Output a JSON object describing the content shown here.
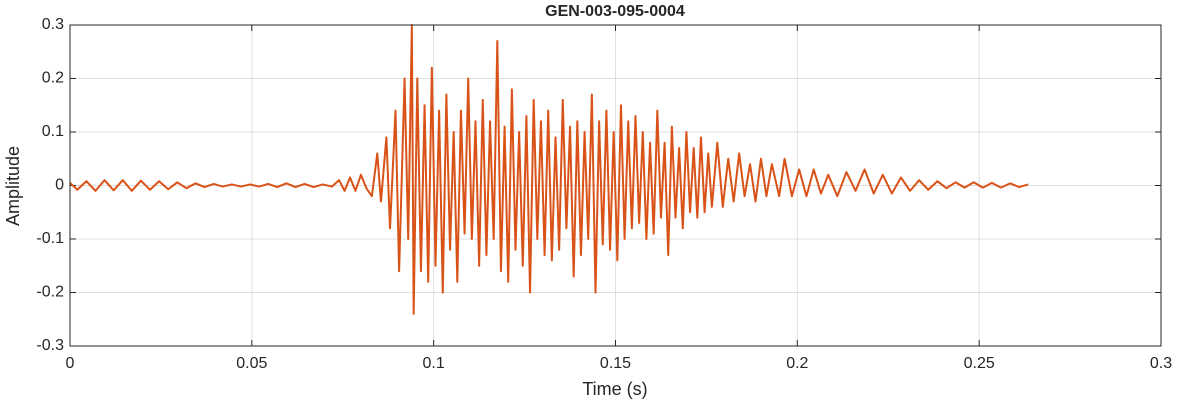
{
  "chart_data": {
    "type": "line",
    "title": "GEN-003-095-0004",
    "x_label": "Time (s)",
    "y_label": "Amplitude",
    "xlim": [
      0,
      0.3
    ],
    "ylim": [
      -0.3,
      0.3
    ],
    "xticks": [
      0,
      0.05,
      0.1,
      0.15,
      0.2,
      0.25,
      0.3
    ],
    "yticks": [
      -0.3,
      -0.2,
      -0.1,
      0,
      0.1,
      0.2,
      0.3
    ],
    "grid": true,
    "color": "#d95319",
    "x": [
      0,
      0.002,
      0.0045,
      0.007,
      0.0095,
      0.012,
      0.0145,
      0.017,
      0.0195,
      0.022,
      0.0245,
      0.027,
      0.0295,
      0.032,
      0.0345,
      0.037,
      0.0395,
      0.042,
      0.0445,
      0.047,
      0.0495,
      0.052,
      0.0545,
      0.057,
      0.0595,
      0.062,
      0.0645,
      0.067,
      0.0695,
      0.072,
      0.074,
      0.0755,
      0.077,
      0.0785,
      0.08,
      0.0815,
      0.083,
      0.0845,
      0.0855,
      0.087,
      0.088,
      0.0895,
      0.0905,
      0.092,
      0.093,
      0.094,
      0.0945,
      0.0955,
      0.0965,
      0.0975,
      0.0985,
      0.0995,
      0.1005,
      0.1015,
      0.1025,
      0.1035,
      0.1045,
      0.1055,
      0.1065,
      0.1075,
      0.1085,
      0.1095,
      0.1105,
      0.1115,
      0.1125,
      0.1135,
      0.1145,
      0.1155,
      0.1165,
      0.1175,
      0.1185,
      0.1195,
      0.1205,
      0.1215,
      0.1225,
      0.1235,
      0.1245,
      0.1255,
      0.1265,
      0.1275,
      0.1285,
      0.1295,
      0.1305,
      0.1315,
      0.1325,
      0.1335,
      0.1345,
      0.1355,
      0.1365,
      0.1375,
      0.1385,
      0.1395,
      0.1405,
      0.1415,
      0.1425,
      0.1435,
      0.1445,
      0.1455,
      0.1465,
      0.1475,
      0.1485,
      0.1495,
      0.1505,
      0.1515,
      0.1525,
      0.1535,
      0.1545,
      0.1555,
      0.1565,
      0.1575,
      0.1585,
      0.1595,
      0.1605,
      0.1615,
      0.1625,
      0.1635,
      0.1645,
      0.1655,
      0.1665,
      0.1675,
      0.1685,
      0.1695,
      0.1705,
      0.1715,
      0.1725,
      0.1735,
      0.1745,
      0.1755,
      0.1765,
      0.178,
      0.1795,
      0.181,
      0.1825,
      0.184,
      0.1855,
      0.187,
      0.1885,
      0.19,
      0.1915,
      0.193,
      0.195,
      0.1965,
      0.1985,
      0.2005,
      0.2025,
      0.2045,
      0.2065,
      0.2085,
      0.211,
      0.2135,
      0.216,
      0.2185,
      0.221,
      0.2235,
      0.226,
      0.2285,
      0.231,
      0.2335,
      0.236,
      0.2385,
      0.241,
      0.2435,
      0.246,
      0.2485,
      0.251,
      0.2535,
      0.256,
      0.2585,
      0.261,
      0.2635
    ],
    "series": [
      {
        "color": "#d95319",
        "values": [
          0.005,
          -0.008,
          0.008,
          -0.01,
          0.01,
          -0.009,
          0.01,
          -0.01,
          0.009,
          -0.008,
          0.008,
          -0.007,
          0.006,
          -0.005,
          0.004,
          -0.003,
          0.003,
          -0.002,
          0.002,
          -0.002,
          0.002,
          -0.002,
          0.003,
          -0.003,
          0.004,
          -0.003,
          0.003,
          -0.003,
          0.002,
          -0.002,
          0.01,
          -0.01,
          0.015,
          -0.01,
          0.02,
          -0.005,
          -0.02,
          0.06,
          -0.03,
          0.09,
          -0.08,
          0.14,
          -0.16,
          0.2,
          -0.1,
          0.3,
          -0.24,
          0.2,
          -0.16,
          0.15,
          -0.18,
          0.22,
          -0.15,
          0.14,
          -0.2,
          0.17,
          -0.12,
          0.1,
          -0.18,
          0.14,
          -0.09,
          0.2,
          -0.1,
          0.12,
          -0.15,
          0.16,
          -0.13,
          0.12,
          -0.1,
          0.27,
          -0.16,
          0.11,
          -0.18,
          0.18,
          -0.12,
          0.1,
          -0.15,
          0.13,
          -0.2,
          0.16,
          -0.1,
          0.12,
          -0.13,
          0.14,
          -0.14,
          0.09,
          -0.12,
          0.16,
          -0.08,
          0.11,
          -0.17,
          0.12,
          -0.13,
          0.1,
          -0.1,
          0.17,
          -0.2,
          0.12,
          -0.11,
          0.14,
          -0.12,
          0.1,
          -0.14,
          0.15,
          -0.1,
          0.12,
          -0.08,
          0.13,
          -0.07,
          0.1,
          -0.1,
          0.08,
          -0.09,
          0.14,
          -0.06,
          0.08,
          -0.13,
          0.11,
          -0.06,
          0.07,
          -0.08,
          0.1,
          -0.05,
          0.07,
          -0.06,
          0.09,
          -0.05,
          0.06,
          -0.04,
          0.08,
          -0.04,
          0.05,
          -0.03,
          0.06,
          -0.02,
          0.04,
          -0.03,
          0.05,
          -0.02,
          0.04,
          -0.02,
          0.05,
          -0.02,
          0.03,
          -0.02,
          0.03,
          -0.015,
          0.02,
          -0.02,
          0.025,
          -0.01,
          0.03,
          -0.015,
          0.02,
          -0.015,
          0.015,
          -0.01,
          0.01,
          -0.008,
          0.008,
          -0.005,
          0.006,
          -0.004,
          0.006,
          -0.004,
          0.005,
          -0.004,
          0.004,
          -0.003,
          0.002
        ]
      }
    ]
  }
}
